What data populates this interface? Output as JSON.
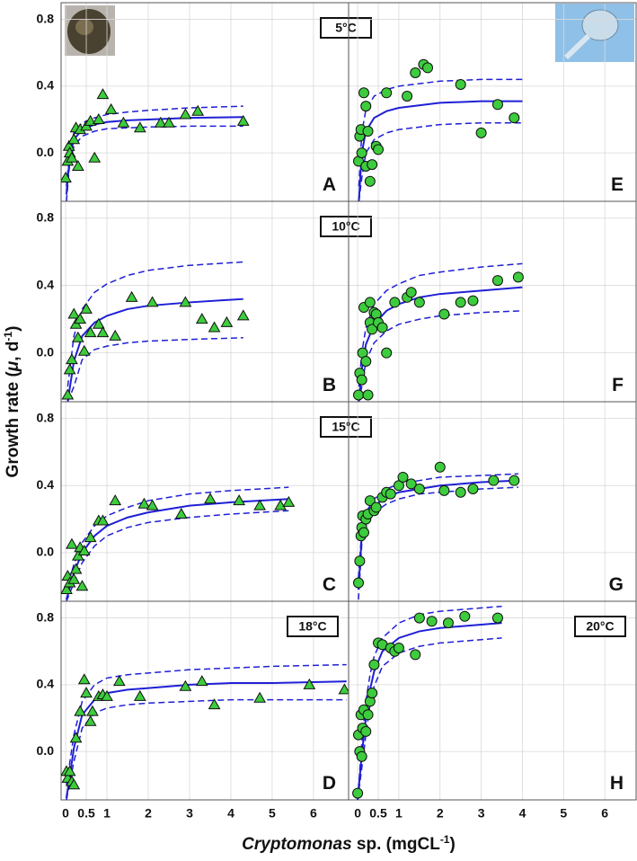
{
  "ylabel": [
    {
      "text": "Growth rate ("
    },
    {
      "text": "μ",
      "italic": true
    },
    {
      "text": ", d"
    },
    {
      "text": "-1",
      "sup": true
    },
    {
      "text": ")"
    }
  ],
  "xlabel": [
    {
      "text": "Cryptomonas",
      "italic": true
    },
    {
      "text": " sp. (mgCL"
    },
    {
      "text": "-1",
      "sup": true
    },
    {
      "text": ")"
    }
  ],
  "chart_data": [
    {
      "type": "scatter",
      "label": "A",
      "annotation": "5°C",
      "annotation_position": "center",
      "marker": "triangle",
      "color": "#3dcc3d",
      "show_x_labels": false,
      "show_y_labels": true,
      "grid": true,
      "x": [
        0,
        0.05,
        0.08,
        0.1,
        0.15,
        0.2,
        0.25,
        0.3,
        0.35,
        0.5,
        0.6,
        0.7,
        0.8,
        0.9,
        1.1,
        1.4,
        1.8,
        2.3,
        2.5,
        2.9,
        3.2,
        4.3
      ],
      "values": [
        -0.15,
        -0.05,
        0.04,
        0,
        -0.03,
        0.08,
        0.15,
        -0.08,
        0.14,
        0.16,
        0.19,
        -0.03,
        0.2,
        0.35,
        0.26,
        0.18,
        0.15,
        0.18,
        0.18,
        0.23,
        0.25,
        0.19
      ],
      "fit": {
        "color": "#1f1fd6",
        "x": [
          0.02,
          0.1,
          0.2,
          0.4,
          0.7,
          1,
          1.5,
          2,
          3,
          4.3
        ],
        "curves": [
          {
            "style": "solid",
            "values": [
              -0.25,
              -0.02,
              0.08,
              0.14,
              0.17,
              0.185,
              0.195,
              0.2,
              0.21,
              0.215
            ]
          },
          {
            "style": "dashed",
            "values": [
              -0.2,
              0.02,
              0.12,
              0.18,
              0.21,
              0.23,
              0.245,
              0.255,
              0.27,
              0.28
            ]
          },
          {
            "style": "dashed",
            "values": [
              -0.29,
              -0.06,
              0.04,
              0.1,
              0.13,
              0.145,
              0.15,
              0.155,
              0.16,
              0.16
            ]
          }
        ]
      },
      "xlim": [
        -0.11,
        6.85
      ],
      "ylim": [
        -0.29,
        0.9
      ],
      "xticks": [
        0,
        0.5,
        1,
        2,
        3,
        4,
        5,
        6
      ],
      "yticks": [
        0.8,
        0.4,
        {
          "value": 0,
          "label": "0.0"
        }
      ]
    },
    {
      "type": "scatter",
      "label": "B",
      "annotation": "10°C",
      "annotation_position": "center",
      "marker": "triangle",
      "color": "#3dcc3d",
      "show_x_labels": false,
      "show_y_labels": true,
      "grid": true,
      "x": [
        0.05,
        0.1,
        0.15,
        0.2,
        0.25,
        0.3,
        0.35,
        0.45,
        0.5,
        0.6,
        0.8,
        0.9,
        1.2,
        1.6,
        2.1,
        2.9,
        3.3,
        3.6,
        3.9,
        4.3
      ],
      "values": [
        -0.25,
        -0.1,
        -0.04,
        0.23,
        0.17,
        0.09,
        0.2,
        0.01,
        0.26,
        0.12,
        0.17,
        0.12,
        0.1,
        0.33,
        0.3,
        0.3,
        0.2,
        0.15,
        0.18,
        0.22
      ],
      "fit": {
        "color": "#1f1fd6",
        "x": [
          0.05,
          0.2,
          0.4,
          0.7,
          1,
          1.5,
          2,
          3,
          4.3
        ],
        "curves": [
          {
            "style": "solid",
            "values": [
              -0.29,
              -0.05,
              0.1,
              0.18,
              0.22,
              0.26,
              0.28,
              0.3,
              0.32
            ]
          },
          {
            "style": "dashed",
            "values": [
              -0.2,
              0.1,
              0.26,
              0.36,
              0.41,
              0.46,
              0.49,
              0.52,
              0.54
            ]
          },
          {
            "style": "dashed",
            "values": [
              -0.29,
              -0.2,
              -0.04,
              0.02,
              0.04,
              0.06,
              0.07,
              0.08,
              0.09
            ]
          }
        ]
      },
      "xlim": [
        -0.11,
        6.85
      ],
      "ylim": [
        -0.29,
        0.9
      ],
      "xticks": [
        0,
        0.5,
        1,
        2,
        3,
        4,
        5,
        6
      ],
      "yticks": [
        0.8,
        0.4,
        {
          "value": 0,
          "label": "0.0"
        }
      ]
    },
    {
      "type": "scatter",
      "label": "C",
      "annotation": "15°C",
      "annotation_position": "center",
      "marker": "triangle",
      "color": "#3dcc3d",
      "show_x_labels": false,
      "show_y_labels": true,
      "grid": true,
      "x": [
        0.02,
        0.05,
        0.1,
        0.15,
        0.2,
        0.25,
        0.3,
        0.35,
        0.4,
        0.45,
        0.6,
        0.8,
        0.9,
        1.2,
        1.9,
        2.1,
        2.8,
        3.5,
        4.2,
        4.7,
        5.2,
        5.4
      ],
      "values": [
        -0.22,
        -0.14,
        -0.18,
        0.05,
        -0.16,
        -0.1,
        -0.02,
        0.03,
        -0.2,
        0.01,
        0.09,
        0.19,
        0.19,
        0.31,
        0.29,
        0.28,
        0.23,
        0.32,
        0.31,
        0.28,
        0.28,
        0.3
      ],
      "fit": {
        "color": "#1f1fd6",
        "x": [
          0.02,
          0.2,
          0.4,
          0.7,
          1,
          1.5,
          2,
          3,
          4,
          5.4
        ],
        "curves": [
          {
            "style": "solid",
            "values": [
              -0.28,
              -0.12,
              0,
              0.1,
              0.16,
              0.21,
              0.24,
              0.28,
              0.3,
              0.32
            ]
          },
          {
            "style": "dashed",
            "values": [
              -0.22,
              -0.07,
              0.06,
              0.16,
              0.22,
              0.27,
              0.31,
              0.35,
              0.37,
              0.39
            ]
          },
          {
            "style": "dashed",
            "values": [
              -0.29,
              -0.18,
              -0.06,
              0.04,
              0.1,
              0.15,
              0.18,
              0.21,
              0.23,
              0.25
            ]
          }
        ]
      },
      "xlim": [
        -0.11,
        6.85
      ],
      "ylim": [
        -0.29,
        0.9
      ],
      "xticks": [
        0,
        0.5,
        1,
        2,
        3,
        4,
        5,
        6
      ],
      "yticks": [
        0.8,
        0.4,
        {
          "value": 0,
          "label": "0.0"
        }
      ]
    },
    {
      "type": "scatter",
      "label": "D",
      "annotation": "18°C",
      "annotation_position": "right",
      "marker": "triangle",
      "color": "#3dcc3d",
      "show_x_labels": true,
      "show_y_labels": true,
      "grid": true,
      "x": [
        0.02,
        0.05,
        0.1,
        0.15,
        0.2,
        0.25,
        0.35,
        0.45,
        0.5,
        0.6,
        0.65,
        0.8,
        0.9,
        1,
        1.3,
        1.8,
        2.9,
        3.3,
        3.6,
        4.7,
        5.9,
        6.75
      ],
      "values": [
        -0.12,
        -0.16,
        -0.12,
        -0.18,
        -0.2,
        0.08,
        0.24,
        0.43,
        0.35,
        0.18,
        0.24,
        0.33,
        0.34,
        0.33,
        0.42,
        0.33,
        0.39,
        0.42,
        0.28,
        0.32,
        0.4,
        0.37
      ],
      "fit": {
        "color": "#1f1fd6",
        "x": [
          0.02,
          0.2,
          0.4,
          0.7,
          1,
          1.5,
          2,
          3,
          4,
          5,
          6.8
        ],
        "curves": [
          {
            "style": "solid",
            "values": [
              -0.28,
              0.02,
              0.22,
              0.31,
              0.35,
              0.37,
              0.38,
              0.4,
              0.41,
              0.41,
              0.42
            ]
          },
          {
            "style": "dashed",
            "values": [
              -0.2,
              0.1,
              0.3,
              0.4,
              0.44,
              0.46,
              0.47,
              0.49,
              0.5,
              0.51,
              0.52
            ]
          },
          {
            "style": "dashed",
            "values": [
              -0.29,
              -0.06,
              0.14,
              0.23,
              0.26,
              0.28,
              0.29,
              0.3,
              0.31,
              0.31,
              0.31
            ]
          }
        ]
      },
      "xlim": [
        -0.11,
        6.85
      ],
      "ylim": [
        -0.29,
        0.9
      ],
      "xticks": [
        0,
        0.5,
        1,
        2,
        3,
        4,
        5,
        6
      ],
      "yticks": [
        0.8,
        0.4,
        {
          "value": 0,
          "label": "0.0"
        }
      ]
    },
    {
      "type": "scatter",
      "label": "E",
      "marker": "circle",
      "color": "#3dcc3d",
      "show_x_labels": false,
      "show_y_labels": false,
      "grid": true,
      "x": [
        0.02,
        0.05,
        0.08,
        0.1,
        0.15,
        0.2,
        0.2,
        0.25,
        0.3,
        0.35,
        0.45,
        0.5,
        0.7,
        1.2,
        1.4,
        1.6,
        1.7,
        2.5,
        3,
        3.4,
        3.8
      ],
      "values": [
        -0.05,
        0.1,
        0.14,
        0,
        0.36,
        0.28,
        -0.08,
        0.13,
        -0.17,
        -0.07,
        0.04,
        0.02,
        0.36,
        0.34,
        0.48,
        0.53,
        0.51,
        0.41,
        0.12,
        0.29,
        0.21
      ],
      "fit": {
        "color": "#1f1fd6",
        "x": [
          0.03,
          0.1,
          0.2,
          0.4,
          0.7,
          1,
          2,
          3,
          4
        ],
        "curves": [
          {
            "style": "solid",
            "values": [
              -0.29,
              0,
              0.13,
              0.21,
              0.25,
              0.27,
              0.3,
              0.31,
              0.31
            ]
          },
          {
            "style": "dashed",
            "values": [
              -0.2,
              0.12,
              0.26,
              0.34,
              0.38,
              0.4,
              0.43,
              0.44,
              0.44
            ]
          },
          {
            "style": "dashed",
            "values": [
              -0.29,
              -0.15,
              0,
              0.08,
              0.12,
              0.14,
              0.17,
              0.18,
              0.18
            ]
          }
        ]
      },
      "xlim": [
        -0.22,
        6.76
      ],
      "ylim": [
        -0.29,
        0.9
      ],
      "xticks": [
        0,
        0.5,
        1,
        2,
        3,
        4,
        5,
        6
      ],
      "yticks": [
        0.8,
        0.4,
        {
          "value": 0,
          "label": "0.0"
        }
      ]
    },
    {
      "type": "scatter",
      "label": "F",
      "marker": "circle",
      "color": "#3dcc3d",
      "show_x_labels": false,
      "show_y_labels": false,
      "grid": true,
      "x": [
        0.02,
        0.05,
        0.1,
        0.12,
        0.15,
        0.2,
        0.25,
        0.3,
        0.3,
        0.35,
        0.4,
        0.45,
        0.5,
        0.6,
        0.7,
        0.9,
        1.2,
        1.3,
        1.5,
        2.1,
        2.5,
        2.8,
        3.4,
        3.9
      ],
      "values": [
        -0.25,
        -0.12,
        -0.16,
        0,
        0.27,
        -0.05,
        -0.25,
        0.3,
        0.18,
        0.14,
        0.24,
        0.23,
        0.18,
        0.15,
        0,
        0.3,
        0.33,
        0.36,
        0.3,
        0.23,
        0.3,
        0.31,
        0.43,
        0.45
      ],
      "fit": {
        "color": "#1f1fd6",
        "x": [
          0.03,
          0.1,
          0.2,
          0.4,
          0.7,
          1,
          1.5,
          2,
          3,
          4
        ],
        "curves": [
          {
            "style": "solid",
            "values": [
              -0.29,
              -0.1,
              0.05,
              0.17,
              0.25,
              0.29,
              0.33,
              0.35,
              0.37,
              0.39
            ]
          },
          {
            "style": "dashed",
            "values": [
              -0.2,
              0,
              0.15,
              0.29,
              0.37,
              0.41,
              0.46,
              0.48,
              0.51,
              0.53
            ]
          },
          {
            "style": "dashed",
            "values": [
              -0.29,
              -0.2,
              -0.05,
              0.06,
              0.13,
              0.17,
              0.2,
              0.22,
              0.24,
              0.25
            ]
          }
        ]
      },
      "xlim": [
        -0.22,
        6.76
      ],
      "ylim": [
        -0.29,
        0.9
      ],
      "xticks": [
        0,
        0.5,
        1,
        2,
        3,
        4,
        5,
        6
      ],
      "yticks": [
        0.8,
        0.4,
        {
          "value": 0,
          "label": "0.0"
        }
      ]
    },
    {
      "type": "scatter",
      "label": "G",
      "marker": "circle",
      "color": "#3dcc3d",
      "show_x_labels": false,
      "show_y_labels": false,
      "grid": true,
      "x": [
        0.02,
        0.05,
        0.08,
        0.1,
        0.12,
        0.15,
        0.2,
        0.25,
        0.3,
        0.4,
        0.45,
        0.6,
        0.7,
        0.8,
        1,
        1.1,
        1.3,
        1.5,
        2,
        2.1,
        2.5,
        2.8,
        3.3,
        3.8
      ],
      "values": [
        -0.18,
        -0.05,
        0.1,
        0.15,
        0.22,
        0.12,
        0.2,
        0.23,
        0.31,
        0.25,
        0.27,
        0.33,
        0.36,
        0.35,
        0.4,
        0.45,
        0.41,
        0.38,
        0.51,
        0.37,
        0.36,
        0.38,
        0.43,
        0.43
      ],
      "fit": {
        "color": "#1f1fd6",
        "x": [
          0.02,
          0.1,
          0.2,
          0.4,
          0.7,
          1,
          1.5,
          2,
          3,
          3.9
        ],
        "curves": [
          {
            "style": "solid",
            "values": [
              -0.22,
              0.1,
              0.2,
              0.28,
              0.33,
              0.36,
              0.38,
              0.4,
              0.42,
              0.43
            ]
          },
          {
            "style": "dashed",
            "values": [
              -0.15,
              0.14,
              0.24,
              0.32,
              0.38,
              0.41,
              0.43,
              0.45,
              0.46,
              0.47
            ]
          },
          {
            "style": "dashed",
            "values": [
              -0.28,
              0.05,
              0.16,
              0.24,
              0.29,
              0.32,
              0.35,
              0.36,
              0.38,
              0.39
            ]
          }
        ]
      },
      "xlim": [
        -0.22,
        6.76
      ],
      "ylim": [
        -0.29,
        0.9
      ],
      "xticks": [
        0,
        0.5,
        1,
        2,
        3,
        4,
        5,
        6
      ],
      "yticks": [
        0.8,
        0.4,
        {
          "value": 0,
          "label": "0.0"
        }
      ]
    },
    {
      "type": "scatter",
      "label": "H",
      "annotation": "20°C",
      "annotation_position": "right",
      "marker": "circle",
      "color": "#3dcc3d",
      "show_x_labels": true,
      "show_y_labels": false,
      "grid": true,
      "x": [
        0,
        0.02,
        0.05,
        0.08,
        0.1,
        0.12,
        0.15,
        0.2,
        0.25,
        0.3,
        0.35,
        0.4,
        0.5,
        0.6,
        0.8,
        0.9,
        1,
        1.4,
        1.5,
        1.8,
        2.2,
        2.6,
        3.4
      ],
      "values": [
        -0.25,
        0.1,
        0,
        0.22,
        -0.03,
        0.14,
        0.25,
        0.12,
        0.22,
        0.3,
        0.35,
        0.52,
        0.65,
        0.64,
        0.62,
        0.6,
        0.62,
        0.58,
        0.8,
        0.78,
        0.77,
        0.81,
        0.8
      ],
      "fit": {
        "color": "#1f1fd6",
        "x": [
          0,
          0.1,
          0.2,
          0.3,
          0.4,
          0.6,
          1,
          1.5,
          2,
          3,
          3.5
        ],
        "curves": [
          {
            "style": "solid",
            "values": [
              -0.29,
              -0.02,
              0.2,
              0.37,
              0.48,
              0.6,
              0.68,
              0.72,
              0.74,
              0.76,
              0.77
            ]
          },
          {
            "style": "dashed",
            "values": [
              -0.29,
              0.05,
              0.3,
              0.46,
              0.57,
              0.68,
              0.77,
              0.82,
              0.84,
              0.86,
              0.87
            ]
          },
          {
            "style": "dashed",
            "values": [
              -0.29,
              -0.1,
              0.1,
              0.28,
              0.39,
              0.51,
              0.59,
              0.63,
              0.65,
              0.67,
              0.68
            ]
          }
        ]
      },
      "xlim": [
        -0.22,
        6.76
      ],
      "ylim": [
        -0.29,
        0.9
      ],
      "xticks": [
        0,
        0.5,
        1,
        2,
        3,
        4,
        5,
        6
      ],
      "yticks": [
        0.8,
        0.4,
        {
          "value": 0,
          "label": "0.0"
        }
      ]
    }
  ]
}
